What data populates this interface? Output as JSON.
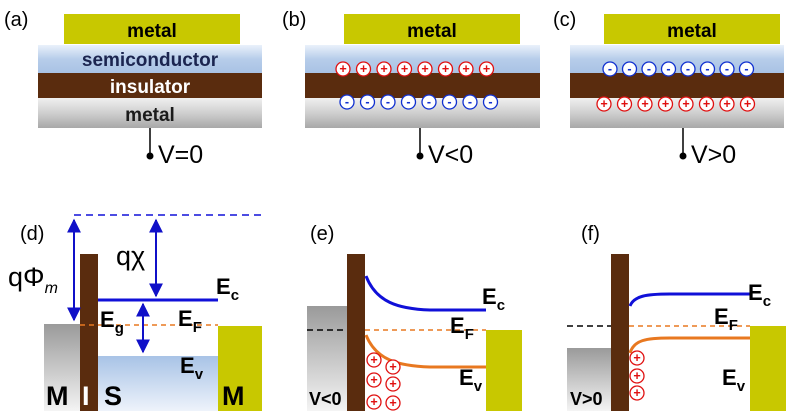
{
  "panels": {
    "a": {
      "tag": "(a)",
      "metal_top": "metal",
      "semiconductor": "semiconductor",
      "insulator": "insulator",
      "metal_bottom": "metal",
      "voltage": "V=0"
    },
    "b": {
      "tag": "(b)",
      "metal_top": "metal",
      "voltage": "V<0"
    },
    "c": {
      "tag": "(c)",
      "metal_top": "metal",
      "voltage": "V>0"
    },
    "d": {
      "tag": "(d)",
      "q_phi": "qΦ",
      "q_phi_sub": "m",
      "q_chi": "qχ",
      "ec": "E",
      "ec_sub": "c",
      "eg": "E",
      "eg_sub": "g",
      "ef": "E",
      "ef_sub": "F",
      "ev": "E",
      "ev_sub": "v",
      "region_m1": "M",
      "region_i": "I",
      "region_s": "S",
      "region_m2": "M"
    },
    "e": {
      "tag": "(e)",
      "ec": "E",
      "ec_sub": "c",
      "ef": "E",
      "ef_sub": "F",
      "ev": "E",
      "ev_sub": "v",
      "voltage": "V<0"
    },
    "f": {
      "tag": "(f)",
      "ec": "E",
      "ec_sub": "c",
      "ef": "E",
      "ef_sub": "F",
      "ev": "E",
      "ev_sub": "v",
      "voltage": "V>0"
    }
  },
  "symbols": {
    "plus": "+",
    "minus": "-"
  },
  "colors": {
    "metal_yellow": "#c8c800",
    "insulator_brown": "#5a2c0e",
    "semiconductor_blue": "#b8d0ee",
    "metal_gray": "#8a8a8a",
    "ec_line": "#1010d8",
    "ev_line": "#e87820",
    "ef_line": "#e87820",
    "arrow_blue": "#1010c8",
    "charge_red": "#e01010",
    "charge_blue": "#1030d0"
  }
}
